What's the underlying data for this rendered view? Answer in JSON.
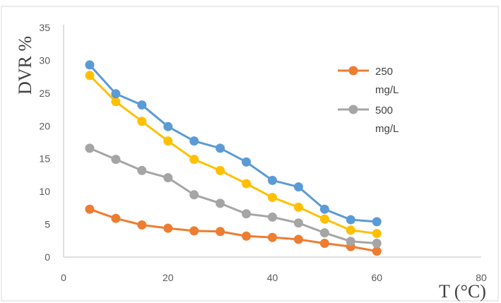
{
  "chart_data": {
    "type": "line",
    "xlabel": "T (°C)",
    "ylabel": "DVR %",
    "xlim": [
      0,
      80
    ],
    "ylim": [
      0,
      35
    ],
    "xticks": [
      0,
      20,
      40,
      60,
      80
    ],
    "yticks": [
      0,
      5,
      10,
      15,
      20,
      25,
      30,
      35
    ],
    "grid": false,
    "legend_position": "top-right",
    "x": [
      5,
      10,
      15,
      20,
      25,
      30,
      35,
      40,
      45,
      50,
      55,
      60
    ],
    "series": [
      {
        "name": "250 mg/L",
        "legend_lines": [
          "250",
          "mg/L"
        ],
        "color": "#ED7D31",
        "values": [
          7.3,
          5.9,
          4.9,
          4.4,
          4.0,
          3.9,
          3.2,
          3.0,
          2.7,
          2.1,
          1.6,
          0.9
        ]
      },
      {
        "name": "500 mg/L",
        "legend_lines": [
          "500",
          "mg/L"
        ],
        "color": "#A5A5A5",
        "values": [
          16.6,
          14.9,
          13.2,
          12.1,
          9.5,
          8.2,
          6.6,
          6.1,
          5.2,
          3.7,
          2.4,
          2.1
        ]
      },
      {
        "color": "#FFC000",
        "values": [
          27.7,
          23.7,
          20.7,
          17.7,
          14.9,
          13.2,
          11.2,
          9.1,
          7.6,
          5.8,
          4.1,
          3.6
        ]
      },
      {
        "color": "#5B9BD5",
        "values": [
          29.3,
          24.9,
          23.2,
          19.9,
          17.7,
          16.6,
          14.5,
          11.7,
          10.7,
          7.3,
          5.7,
          5.4
        ]
      }
    ]
  }
}
